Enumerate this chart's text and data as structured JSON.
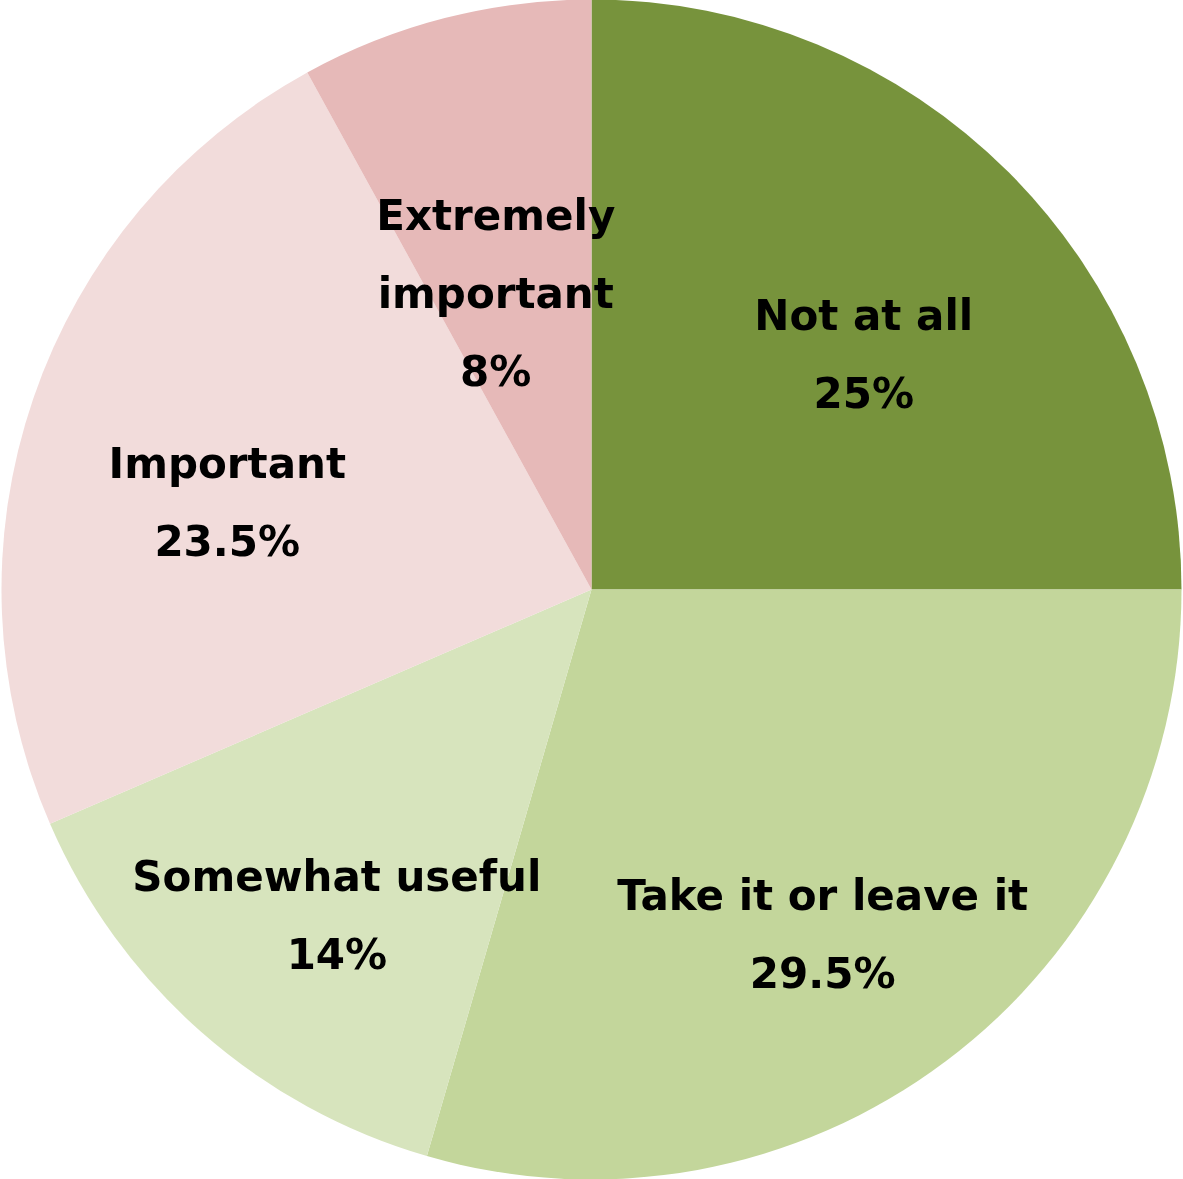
{
  "chart_data": {
    "type": "pie",
    "categories": [
      "Not at all",
      "Take it or leave it",
      "Somewhat useful",
      "Important",
      "Extremely important"
    ],
    "values": [
      25,
      29.5,
      14,
      23.5,
      8
    ],
    "value_labels": [
      "25%",
      "29.5%",
      "14%",
      "23.5%",
      "8%"
    ],
    "colors": [
      "#77933c",
      "#c3d69b",
      "#d7e4bd",
      "#f2dcdb",
      "#e6b9b8"
    ]
  }
}
